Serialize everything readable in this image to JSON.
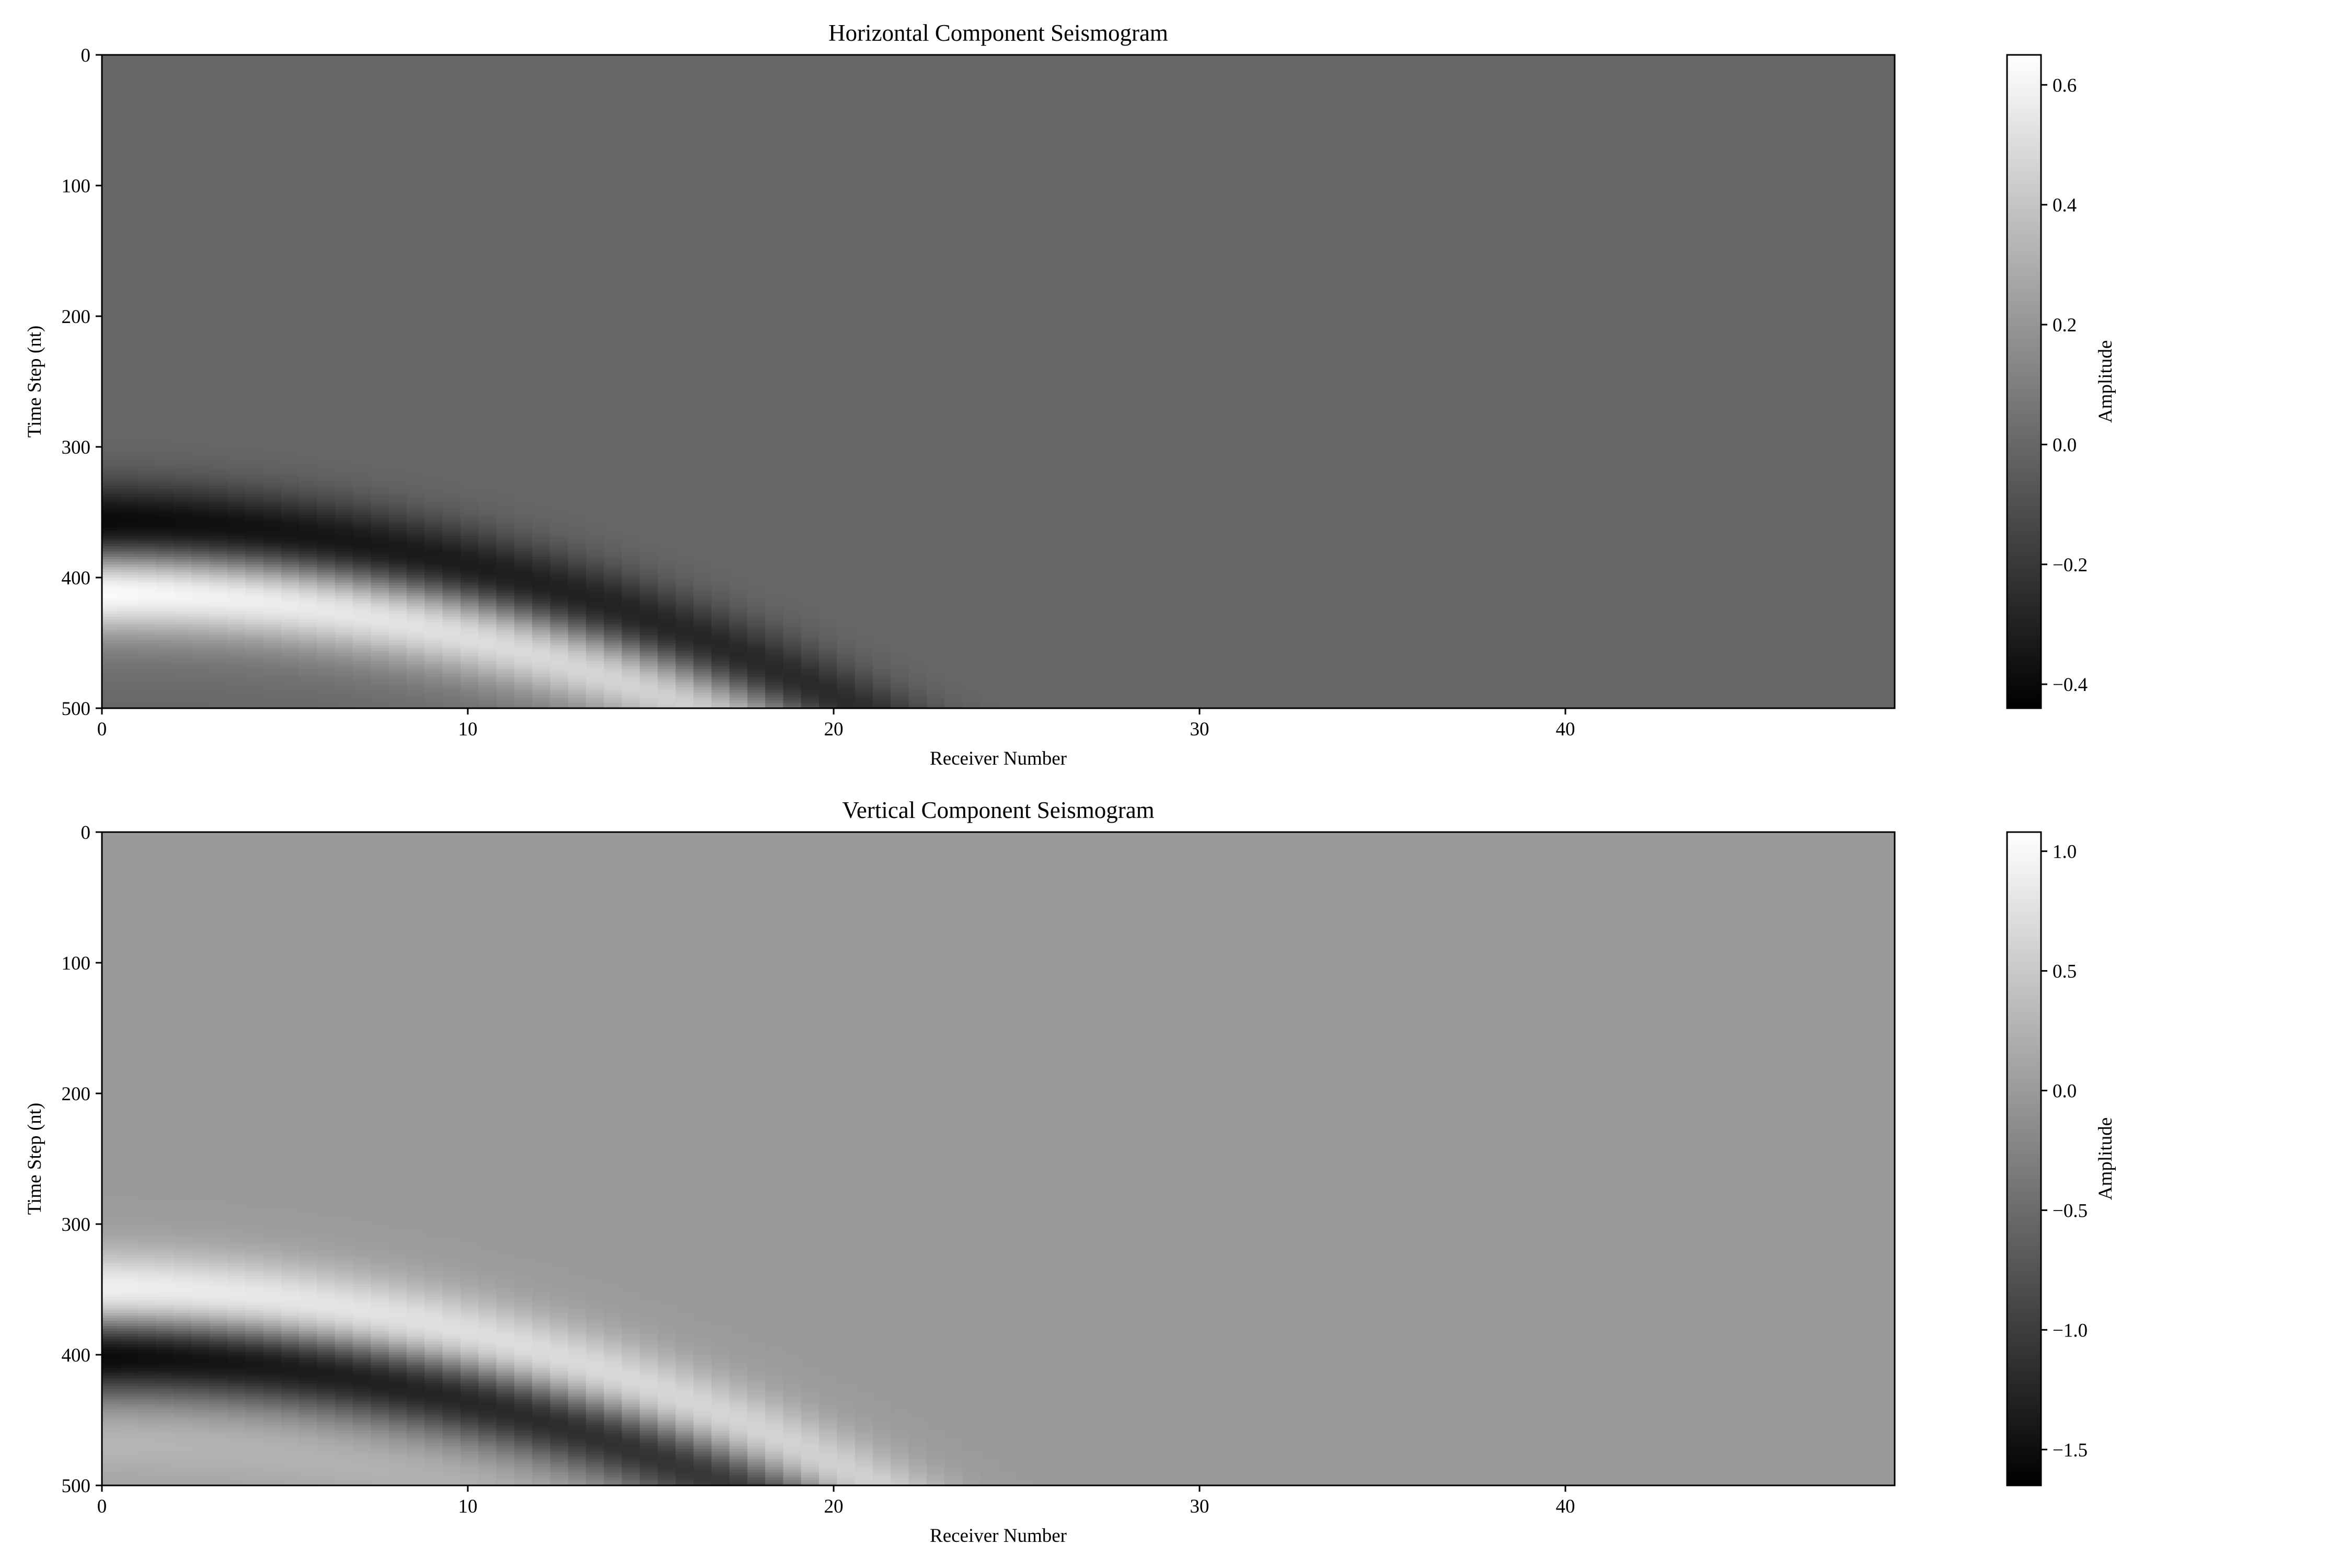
{
  "chart_data": [
    {
      "type": "heatmap",
      "title": "Horizontal Component Seismogram",
      "xlabel": "Receiver Number",
      "ylabel": "Time Step (nt)",
      "x_range": [
        0,
        49
      ],
      "y_range": [
        0,
        500
      ],
      "y_inverted": true,
      "x_ticks": [
        0,
        10,
        20,
        30,
        40
      ],
      "x_tick_labels": [
        "0",
        "10",
        "20",
        "30",
        "40"
      ],
      "y_ticks": [
        0,
        100,
        200,
        300,
        400,
        500
      ],
      "y_tick_labels": [
        "0",
        "100",
        "200",
        "300",
        "400",
        "500"
      ],
      "colormap": "gray",
      "grid": false,
      "colorbar": {
        "label": "Amplitude",
        "range": [
          -0.44,
          0.65
        ],
        "ticks": [
          -0.4,
          -0.2,
          0.0,
          0.2,
          0.4,
          0.6
        ],
        "tick_labels": [
          "−0.4",
          "−0.2",
          "0.0",
          "0.2",
          "0.4",
          "0.6"
        ]
      },
      "wavefront": {
        "arrival_at_receiver_0": 380,
        "moveout_per_receiver_sq": 0.335,
        "lobes": [
          {
            "offset": -20,
            "amplitude": -0.44
          },
          {
            "offset": 30,
            "amplitude": 0.65
          },
          {
            "offset": 70,
            "amplitude": 0.05
          }
        ]
      }
    },
    {
      "type": "heatmap",
      "title": "Vertical Component Seismogram",
      "xlabel": "Receiver Number",
      "ylabel": "Time Step (nt)",
      "x_range": [
        0,
        49
      ],
      "y_range": [
        0,
        500
      ],
      "y_inverted": true,
      "x_ticks": [
        0,
        10,
        20,
        30,
        40
      ],
      "x_tick_labels": [
        "0",
        "10",
        "20",
        "30",
        "40"
      ],
      "y_ticks": [
        0,
        100,
        200,
        300,
        400,
        500
      ],
      "y_tick_labels": [
        "0",
        "100",
        "200",
        "300",
        "400",
        "500"
      ],
      "colormap": "gray",
      "grid": false,
      "colorbar": {
        "label": "Amplitude",
        "range": [
          -1.65,
          1.08
        ],
        "ticks": [
          -1.5,
          -1.0,
          -0.5,
          0.0,
          0.5,
          1.0
        ],
        "tick_labels": [
          "−1.5",
          "−1.0",
          "−0.5",
          "0.0",
          "0.5",
          "1.0"
        ]
      },
      "wavefront": {
        "arrival_at_receiver_0": 372,
        "moveout_per_receiver_sq": 0.335,
        "lobes": [
          {
            "offset": -18,
            "amplitude": 1.05
          },
          {
            "offset": 28,
            "amplitude": -1.65
          },
          {
            "offset": 95,
            "amplitude": 0.3
          }
        ]
      }
    }
  ]
}
